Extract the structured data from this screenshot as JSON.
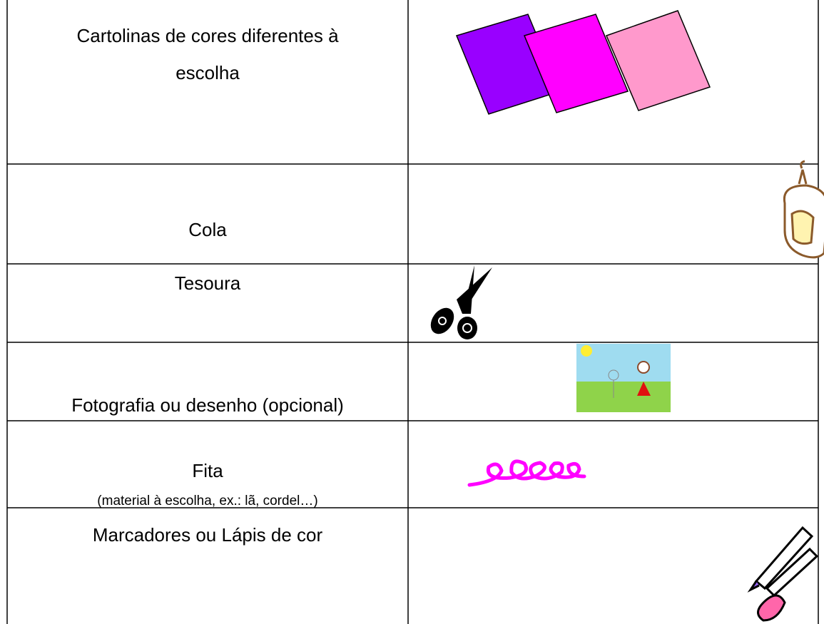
{
  "table": {
    "rows": [
      {
        "item": "Cartolinas de cores diferentes à escolha"
      },
      {
        "item": "Cola"
      },
      {
        "item": "Tesoura"
      },
      {
        "item": "Fotografia ou desenho (opcional)"
      },
      {
        "item": "Fita",
        "note": "(material à escolha, ex.: lã, cordel…)"
      },
      {
        "item": "Marcadores ou Lápis de cor"
      }
    ]
  }
}
